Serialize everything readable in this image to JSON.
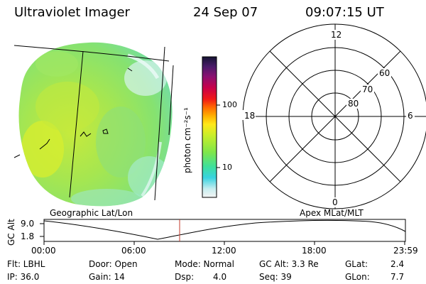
{
  "header": {
    "instrument": "Ultraviolet Imager",
    "date": "24 Sep 07",
    "time": "09:07:15 UT"
  },
  "colorbar": {
    "unit_label": "photon cm⁻²s⁻¹",
    "ticks": [
      "100",
      "10"
    ]
  },
  "polar": {
    "lat_labels": [
      "80",
      "70",
      "60"
    ],
    "mlt_labels": {
      "top": "12",
      "bottom": "0",
      "left": "18",
      "right": "6"
    }
  },
  "coords": {
    "left": "Geographic Lat/Lon",
    "right": "Apex MLat/MLT"
  },
  "altitude_plot": {
    "ylabel": "GC Alt",
    "yticks": [
      "9.0",
      "1.8"
    ],
    "xticks": [
      "00:00",
      "06:00",
      "12:00",
      "18:00",
      "23:59"
    ]
  },
  "status": {
    "filter": "Flt: LBHL",
    "ip": "IP: 36.0",
    "door": "Door: Open",
    "gain": "Gain: 14",
    "mode": "Mode: Normal",
    "dsp_label": "Dsp:",
    "dsp_value": "4.0",
    "gc_alt": "GC Alt: 3.3 Re",
    "seq": "Seq: 39",
    "glat_label": "GLat:",
    "glat_value": "2.4",
    "glon_label": "GLon:",
    "glon_value": "7.7"
  },
  "colors": {
    "disk_main": "#9be65a",
    "disk_bright": "#d2ee3c",
    "disk_cyan": "#7fe2c4",
    "marker": "#c0392b"
  }
}
